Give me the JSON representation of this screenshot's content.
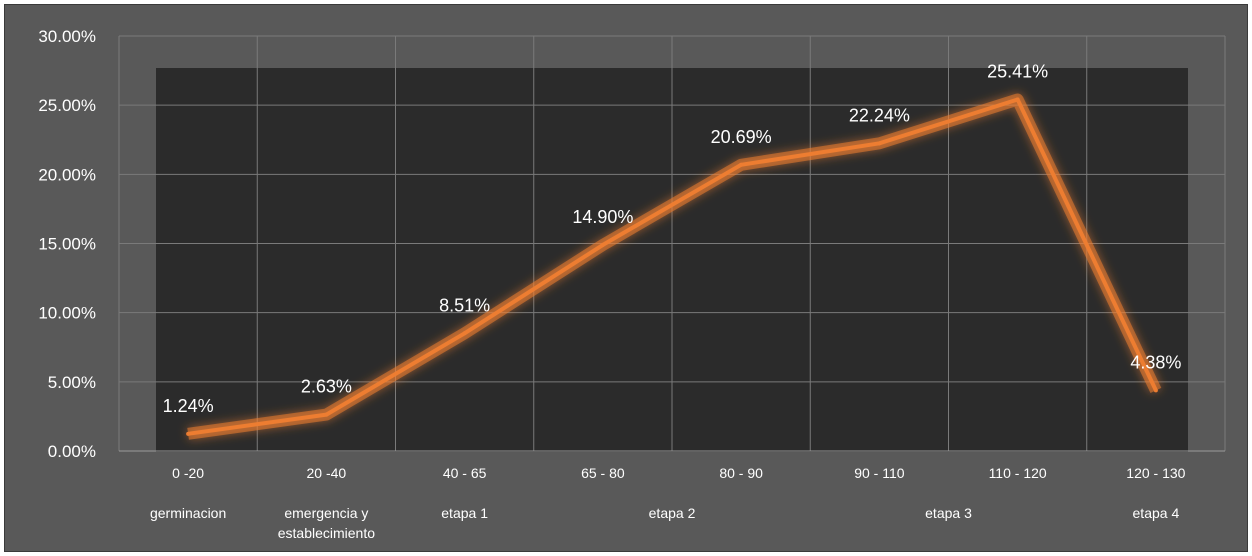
{
  "chart_data": {
    "type": "line",
    "categories": [
      "0 -20",
      "20 -40",
      "40 - 65",
      "65 - 80",
      "80 - 90",
      "90 - 110",
      "110 - 120",
      "120 - 130"
    ],
    "groups": [
      {
        "label": "germinacion",
        "from": 0,
        "to": 0
      },
      {
        "label": "emergencia y establecimiento",
        "lines": [
          "emergencia y",
          "establecimiento"
        ],
        "from": 1,
        "to": 1
      },
      {
        "label": "etapa 1",
        "from": 2,
        "to": 2
      },
      {
        "label": "etapa 2",
        "from": 3,
        "to": 4
      },
      {
        "label": "etapa 3",
        "from": 5,
        "to": 6
      },
      {
        "label": "etapa 4",
        "from": 7,
        "to": 7
      }
    ],
    "series": [
      {
        "values": [
          1.24,
          2.63,
          8.51,
          14.9,
          20.69,
          22.24,
          25.41,
          4.38
        ],
        "color": "#ED7D31"
      }
    ],
    "data_labels": [
      "1.24%",
      "2.63%",
      "8.51%",
      "14.90%",
      "20.69%",
      "22.24%",
      "25.41%",
      "4.38%"
    ],
    "yticks": [
      "0.00%",
      "5.00%",
      "10.00%",
      "15.00%",
      "20.00%",
      "25.00%",
      "30.00%"
    ],
    "ylim": [
      0,
      30
    ],
    "grid": true,
    "legend": "none",
    "title": "",
    "xlabel": "",
    "ylabel": ""
  }
}
